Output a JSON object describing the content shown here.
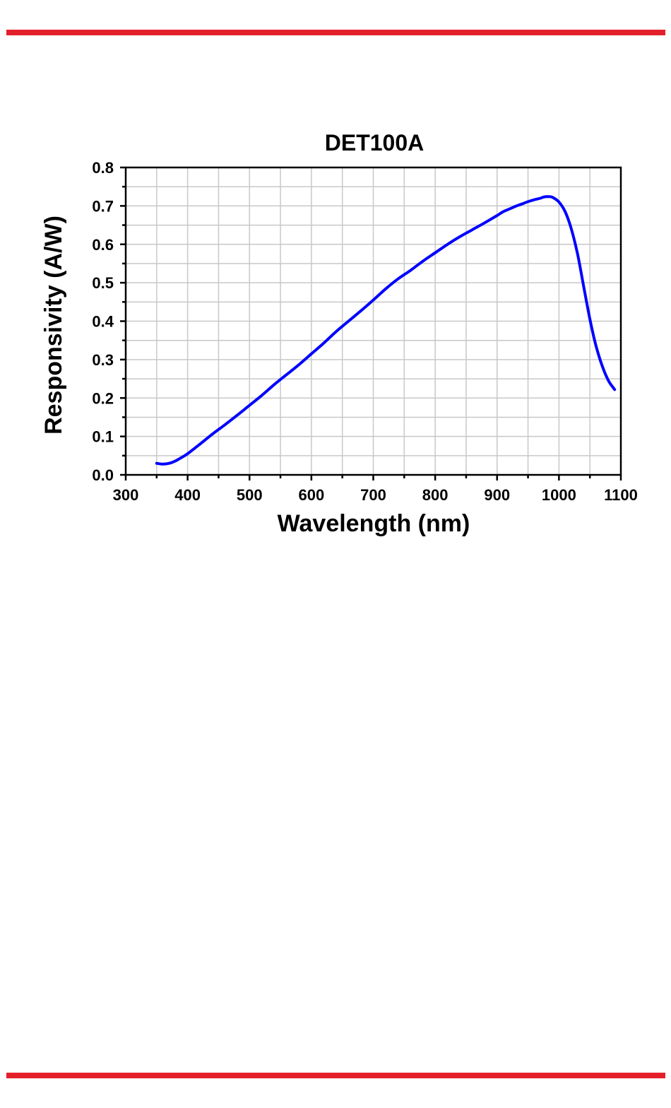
{
  "colors": {
    "rule": "#e3202a",
    "series": "#0000ff",
    "grid": "#c8c8c8",
    "axis": "#000000"
  },
  "chart_data": {
    "type": "line",
    "title": "DET100A",
    "xlabel": "Wavelength (nm)",
    "ylabel": "Responsivity (A/W)",
    "xlim": [
      300,
      1100
    ],
    "ylim": [
      0.0,
      0.8
    ],
    "x_ticks": [
      "300",
      "400",
      "500",
      "600",
      "700",
      "800",
      "900",
      "1000",
      "1100"
    ],
    "y_ticks": [
      "0.0",
      "0.1",
      "0.2",
      "0.3",
      "0.4",
      "0.5",
      "0.6",
      "0.7",
      "0.8"
    ],
    "grid": true,
    "legend": "none",
    "series": [
      {
        "x": [
          350,
          360,
          370,
          380,
          390,
          400,
          420,
          440,
          460,
          480,
          500,
          520,
          540,
          560,
          580,
          600,
          620,
          640,
          660,
          680,
          700,
          720,
          740,
          760,
          780,
          800,
          820,
          840,
          860,
          880,
          900,
          910,
          920,
          930,
          940,
          950,
          960,
          970,
          975,
          980,
          985,
          990,
          1000,
          1010,
          1020,
          1030,
          1040,
          1050,
          1060,
          1070,
          1080,
          1090
        ],
        "y": [
          0.03,
          0.028,
          0.03,
          0.036,
          0.045,
          0.055,
          0.08,
          0.106,
          0.13,
          0.155,
          0.181,
          0.207,
          0.235,
          0.261,
          0.287,
          0.315,
          0.343,
          0.373,
          0.4,
          0.427,
          0.455,
          0.484,
          0.51,
          0.532,
          0.556,
          0.578,
          0.6,
          0.62,
          0.638,
          0.656,
          0.675,
          0.685,
          0.692,
          0.699,
          0.705,
          0.711,
          0.716,
          0.72,
          0.723,
          0.724,
          0.724,
          0.722,
          0.71,
          0.685,
          0.64,
          0.575,
          0.49,
          0.405,
          0.335,
          0.283,
          0.245,
          0.222
        ]
      }
    ]
  }
}
